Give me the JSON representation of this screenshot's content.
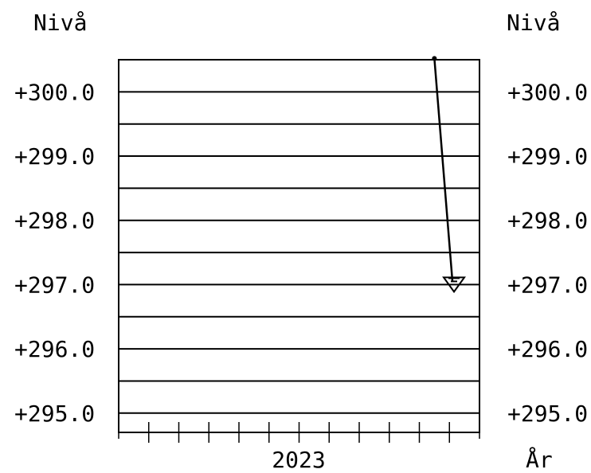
{
  "chart_data": {
    "type": "line",
    "title": "",
    "ylabel_left": "Nivå",
    "ylabel_right": "Nivå",
    "xlabel": "År",
    "x_tick_label": "2023",
    "ylim": [
      294.7,
      300.5
    ],
    "yticks": [
      295.0,
      296.0,
      297.0,
      298.0,
      299.0,
      300.0
    ],
    "ytick_labels": [
      "+295.0",
      "+296.0",
      "+297.0",
      "+298.0",
      "+299.0",
      "+300.0"
    ],
    "grid": "horizontal, every 0.5",
    "x_minor_ticks": 12,
    "series": [
      {
        "marker": "dot-then-triangle",
        "points": [
          {
            "x": 10.5,
            "y": 300.52
          },
          {
            "x": 11.1,
            "y": 297.05
          }
        ]
      }
    ]
  }
}
